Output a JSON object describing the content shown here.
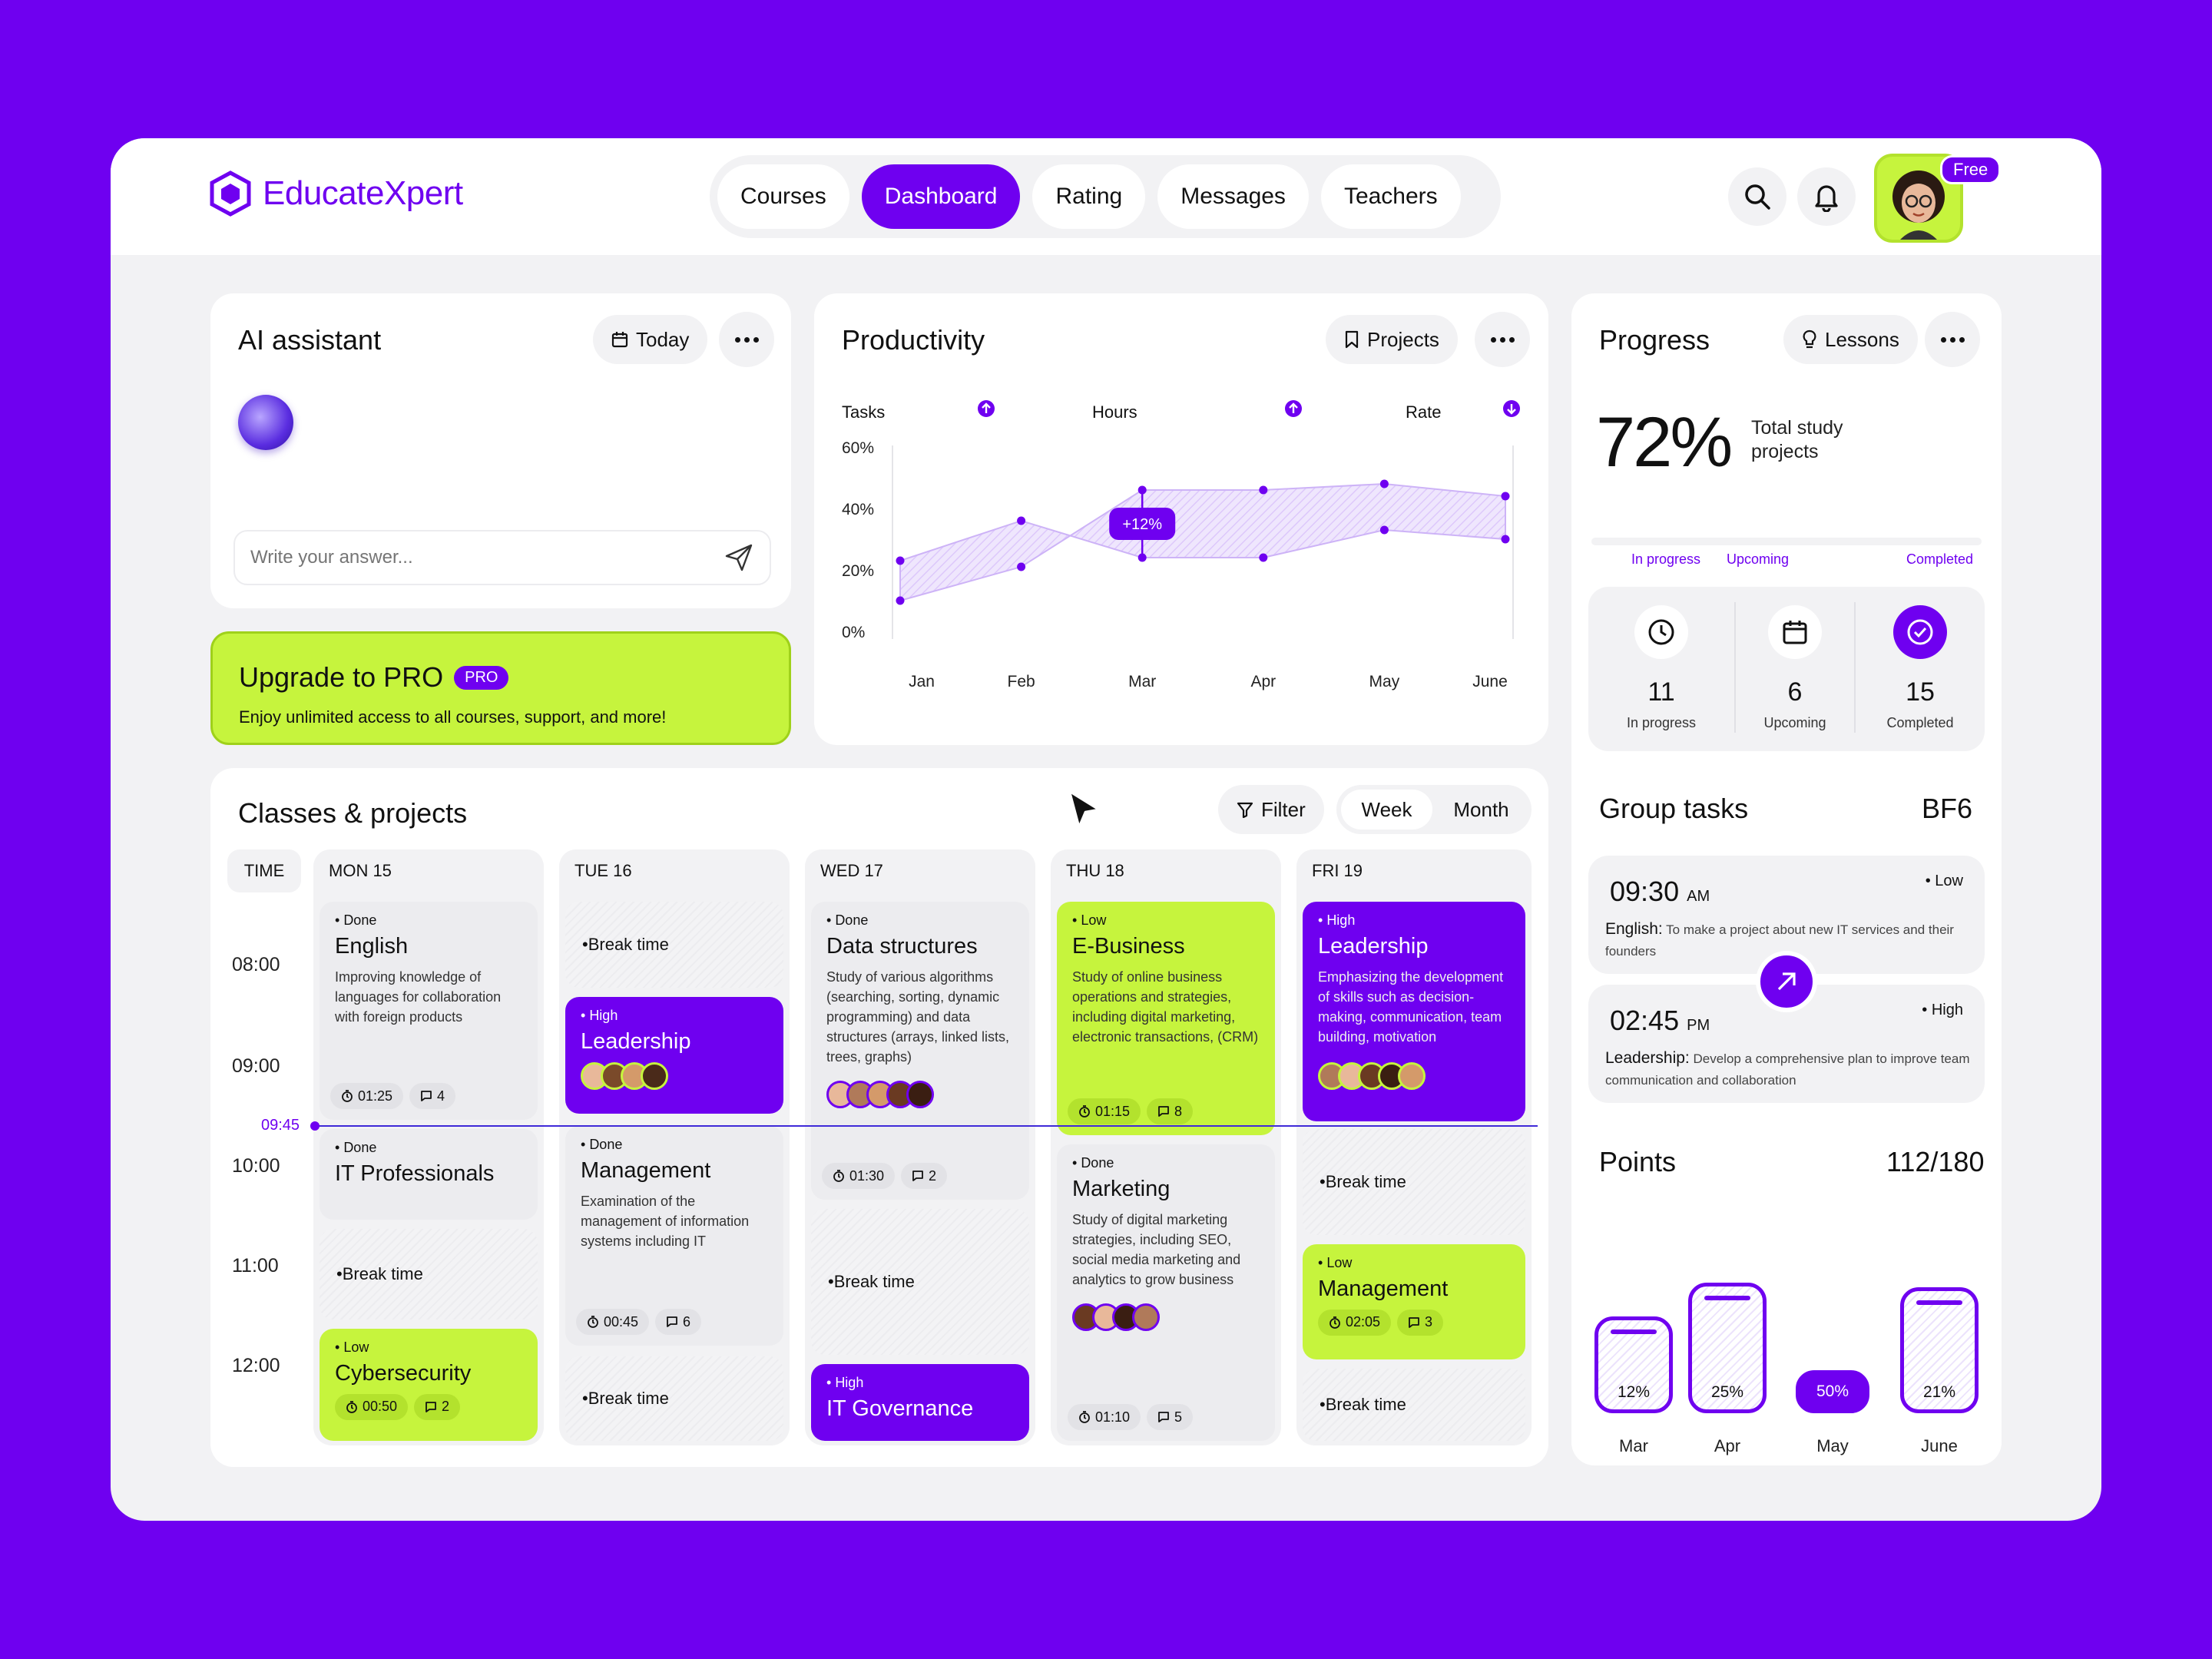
{
  "app": {
    "name": "EducateXpert",
    "free_badge": "Free"
  },
  "nav": {
    "tabs": [
      {
        "label": "Courses",
        "active": false
      },
      {
        "label": "Dashboard",
        "active": true
      },
      {
        "label": "Rating",
        "active": false
      },
      {
        "label": "Messages",
        "active": false
      },
      {
        "label": "Teachers",
        "active": false
      }
    ]
  },
  "assistant": {
    "title": "AI assistant",
    "filter_label": "Today",
    "input_placeholder": "Write your answer..."
  },
  "upgrade": {
    "title": "Upgrade to PRO",
    "badge": "PRO",
    "subtitle": "Enjoy unlimited access to all courses, support, and more!"
  },
  "productivity": {
    "title": "Productivity",
    "filter_label": "Projects",
    "legend": [
      "Tasks",
      "Hours",
      "Rate"
    ],
    "annotation": "+12%"
  },
  "chart_data": {
    "type": "area",
    "categories": [
      "Jan",
      "Feb",
      "Mar",
      "Apr",
      "May",
      "June"
    ],
    "series": [
      {
        "name": "",
        "values": [
          10,
          21,
          46,
          46,
          48,
          44
        ]
      },
      {
        "name": "",
        "values": [
          23,
          36,
          24,
          24,
          33,
          30
        ]
      }
    ],
    "yticks": [
      "60%",
      "40%",
      "20%",
      "0%"
    ],
    "ylim": [
      0,
      60
    ],
    "annotation": {
      "x": "Mar",
      "text": "+12%"
    },
    "grid": false
  },
  "progress": {
    "title": "Progress",
    "filter_label": "Lessons",
    "percent": "72%",
    "description": "Total study projects",
    "bar_labels": [
      "In progress",
      "Upcoming",
      "Completed"
    ],
    "stats": [
      {
        "value": "11",
        "label": "In progress"
      },
      {
        "value": "6",
        "label": "Upcoming"
      },
      {
        "value": "15",
        "label": "Completed"
      }
    ]
  },
  "group_tasks": {
    "title": "Group tasks",
    "code": "BF6",
    "items": [
      {
        "time": "09:30",
        "period": "AM",
        "priority": "Low",
        "subject": "English:",
        "desc": "To make a project about new IT services and their founders"
      },
      {
        "time": "02:45",
        "period": "PM",
        "priority": "High",
        "subject": "Leadership:",
        "desc": "Develop a comprehensive plan to improve team communication and collaboration"
      }
    ]
  },
  "points": {
    "title": "Points",
    "value": "112/180",
    "bars": [
      {
        "month": "Mar",
        "label": "12%",
        "level": 12
      },
      {
        "month": "Apr",
        "label": "25%",
        "level": 25
      },
      {
        "month": "May",
        "label": "50%",
        "level": 50
      },
      {
        "month": "June",
        "label": "21%",
        "level": 21
      }
    ]
  },
  "classes": {
    "title": "Classes & projects",
    "filter_label": "Filter",
    "view_toggle": [
      "Week",
      "Month"
    ],
    "time_header": "TIME",
    "times": [
      "08:00",
      "09:00",
      "10:00",
      "11:00",
      "12:00"
    ],
    "now_marker": "09:45",
    "break_label": "Break time",
    "days": [
      {
        "label": "MON 15",
        "events": [
          {
            "status": "Done",
            "title": "English",
            "desc": "Improving knowledge of languages for collaboration with foreign products",
            "duration": "01:25",
            "comments": "4"
          },
          {
            "status": "Done",
            "title": "IT Professionals"
          },
          {
            "status": "Low",
            "title": "Cybersecurity",
            "duration": "00:50",
            "comments": "2"
          }
        ]
      },
      {
        "label": "TUE 16",
        "events": [
          {
            "status": "High",
            "title": "Leadership"
          },
          {
            "status": "Done",
            "title": "Management",
            "desc": "Examination of the management of information systems including IT",
            "duration": "00:45",
            "comments": "6"
          }
        ]
      },
      {
        "label": "WED 17",
        "events": [
          {
            "status": "Done",
            "title": "Data structures",
            "desc": "Study of various algorithms (searching, sorting, dynamic programming) and data structures (arrays, linked lists, trees, graphs)",
            "duration": "01:30",
            "comments": "2"
          },
          {
            "status": "High",
            "title": "IT Governance"
          }
        ]
      },
      {
        "label": "THU 18",
        "events": [
          {
            "status": "Low",
            "title": "E-Business",
            "desc": "Study of online business operations and strategies, including digital marketing, electronic transactions, (CRM)",
            "duration": "01:15",
            "comments": "8"
          },
          {
            "status": "Done",
            "title": "Marketing",
            "desc": "Study of digital marketing strategies, including SEO, social media marketing and analytics to grow business",
            "duration": "01:10",
            "comments": "5"
          }
        ]
      },
      {
        "label": "FRI 19",
        "events": [
          {
            "status": "High",
            "title": "Leadership",
            "desc": "Emphasizing the development of skills such as decision-making, communication, team building, motivation"
          },
          {
            "status": "Low",
            "title": "Management",
            "duration": "02:05",
            "comments": "3"
          }
        ]
      }
    ]
  },
  "colors": {
    "accent": "#6f00f0",
    "lime": "#c6f43d",
    "background": "#f2f2f4"
  }
}
